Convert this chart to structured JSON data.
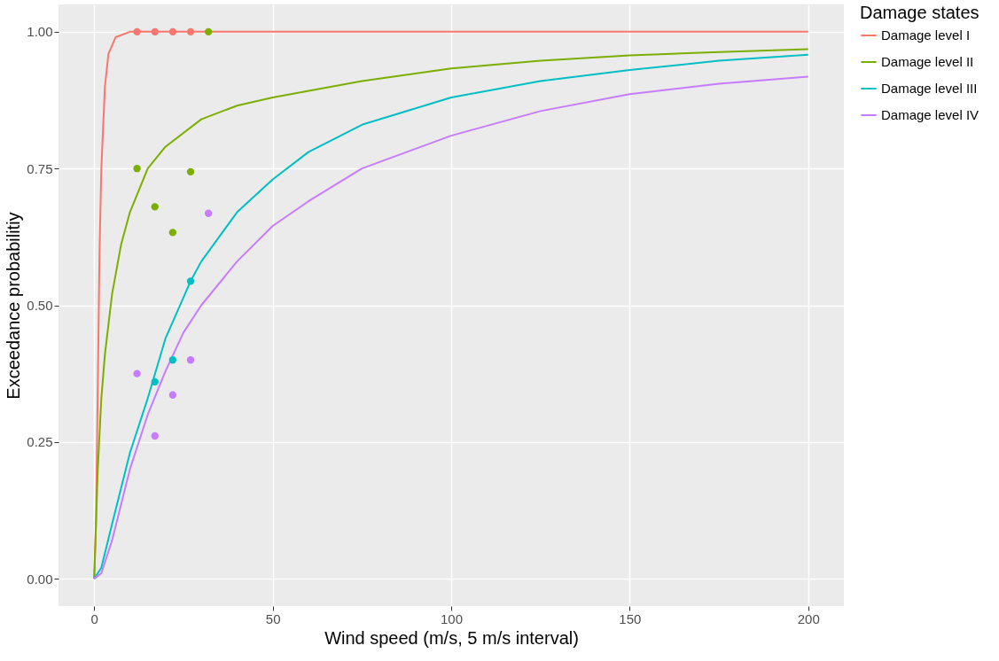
{
  "chart_data": {
    "type": "line",
    "xlabel": "Wind speed (m/s, 5 m/s interval)",
    "ylabel": "Exceedance probabilitiy",
    "legend_title": "Damage states",
    "legend": "right",
    "grid": true,
    "line_style": "solid",
    "xlim": [
      -10,
      210
    ],
    "xticks": [
      0,
      50,
      100,
      150,
      200
    ],
    "ylim": [
      -0.05,
      1.05
    ],
    "yticks": [
      {
        "value": 0,
        "label": "0.00"
      },
      {
        "value": 0.25,
        "label": "0.25"
      },
      {
        "value": 0.5,
        "label": "0.50"
      },
      {
        "value": 0.75,
        "label": "0.75"
      },
      {
        "value": 1,
        "label": "1.00"
      }
    ],
    "series": [
      {
        "name": "Damage level I",
        "color": "#f8766d",
        "x": [
          0,
          0.5,
          1,
          1.5,
          2,
          3,
          4,
          6,
          10,
          200
        ],
        "values": [
          0,
          0.1,
          0.35,
          0.6,
          0.75,
          0.9,
          0.96,
          0.99,
          1,
          1
        ]
      },
      {
        "name": "Damage level II",
        "color": "#7cae00",
        "x": [
          0,
          1,
          2,
          3,
          5,
          7.5,
          10,
          15,
          20,
          30,
          40,
          50,
          75,
          100,
          125,
          150,
          175,
          200
        ],
        "values": [
          0,
          0.2,
          0.33,
          0.41,
          0.52,
          0.61,
          0.67,
          0.75,
          0.79,
          0.84,
          0.865,
          0.88,
          0.91,
          0.933,
          0.947,
          0.957,
          0.963,
          0.968
        ]
      },
      {
        "name": "Damage level III",
        "color": "#00bfc4",
        "x": [
          0,
          2,
          5,
          10,
          15,
          20,
          27,
          30,
          40,
          50,
          60,
          75,
          100,
          125,
          150,
          175,
          200
        ],
        "values": [
          0,
          0.02,
          0.1,
          0.23,
          0.33,
          0.44,
          0.544,
          0.58,
          0.67,
          0.73,
          0.78,
          0.83,
          0.88,
          0.91,
          0.93,
          0.947,
          0.958
        ]
      },
      {
        "name": "Damage level IV",
        "color": "#c77cff",
        "x": [
          0,
          2,
          5,
          10,
          15,
          20,
          25,
          30,
          40,
          50,
          60,
          75,
          100,
          125,
          150,
          175,
          200
        ],
        "values": [
          0,
          0.01,
          0.07,
          0.2,
          0.3,
          0.38,
          0.45,
          0.5,
          0.58,
          0.645,
          0.69,
          0.75,
          0.81,
          0.855,
          0.886,
          0.905,
          0.918
        ]
      },
      {
        "type": "scatter",
        "color": "#f8766d",
        "x": [
          12,
          17,
          22,
          27
        ],
        "values": [
          1,
          1,
          1,
          1
        ]
      },
      {
        "type": "scatter",
        "color": "#7cae00",
        "x": [
          12,
          17,
          22,
          27,
          32
        ],
        "values": [
          0.75,
          0.68,
          0.633,
          0.744,
          1
        ]
      },
      {
        "type": "scatter",
        "color": "#00bfc4",
        "x": [
          17,
          22,
          27
        ],
        "values": [
          0.36,
          0.4,
          0.544
        ]
      },
      {
        "type": "scatter",
        "color": "#c77cff",
        "x": [
          12,
          17,
          22,
          27,
          32
        ],
        "values": [
          0.375,
          0.261,
          0.336,
          0.4,
          0.668
        ]
      }
    ]
  }
}
